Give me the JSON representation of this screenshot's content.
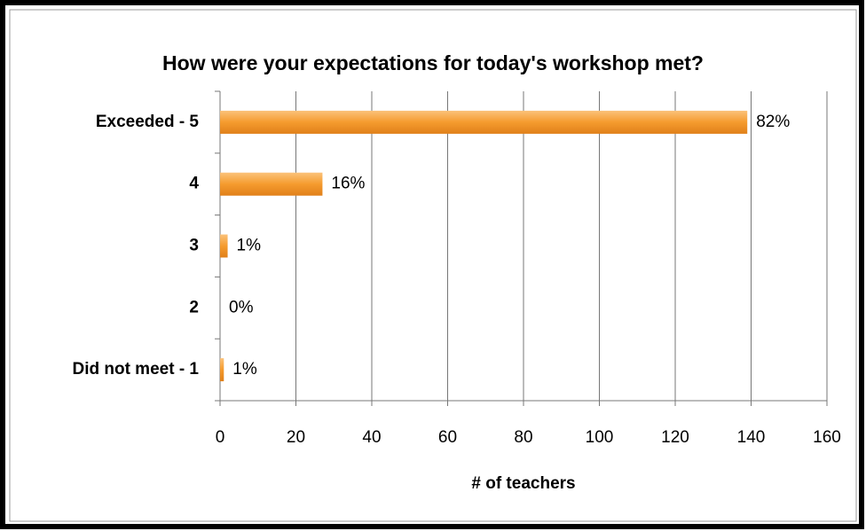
{
  "chart_data": {
    "type": "bar",
    "orientation": "horizontal",
    "title": "How were your expectations for today's workshop met?",
    "x_label": "# of teachers",
    "categories": [
      "Exceeded - 5",
      "4",
      "3",
      "2",
      "Did not meet - 1"
    ],
    "values": [
      139,
      27,
      2,
      0,
      1
    ],
    "percent_labels": [
      "82%",
      "16%",
      "1%",
      "0%",
      "1%"
    ],
    "color": "#f59b2e",
    "xlim": [
      0,
      160
    ],
    "xticks": [
      0,
      20,
      40,
      60,
      80,
      100,
      120,
      140,
      160
    ],
    "grid": true
  }
}
